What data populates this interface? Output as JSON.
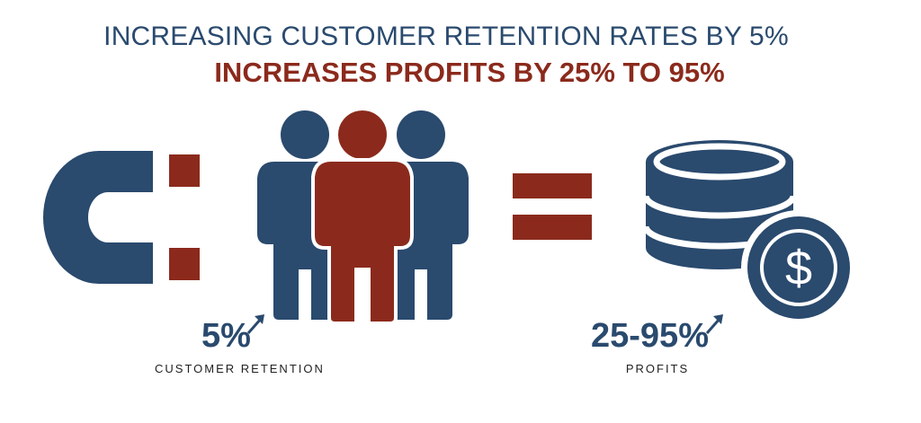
{
  "headline": {
    "line1": "INCREASING CUSTOMER RETENTION RATES BY 5%",
    "line2": "INCREASES PROFITS BY 25% TO 95%"
  },
  "left_stat": {
    "value": "5%",
    "label": "CUSTOMER RETENTION",
    "icon": "magnet-icon"
  },
  "right_stat": {
    "value": "25-95%",
    "label": "PROFITS",
    "icon": "coin-stack-icon"
  },
  "center": {
    "people_icon": "people-group-icon",
    "equals_icon": "equals-icon",
    "dollar_symbol": "$"
  },
  "colors": {
    "navy": "#2a4a6e",
    "rust": "#8b2a1c",
    "white": "#ffffff"
  }
}
